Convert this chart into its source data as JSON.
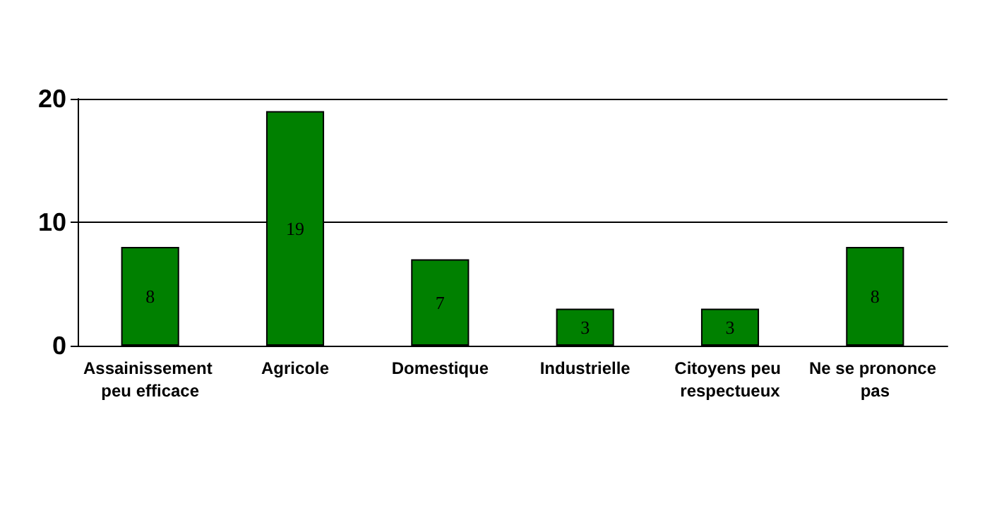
{
  "chart_data": {
    "type": "bar",
    "categories": [
      "Assainissement peu efficace",
      "Agricole",
      "Domestique",
      "Industrielle",
      "Citoyens peu respectueux",
      "Ne se prononce pas"
    ],
    "values": [
      8,
      19,
      7,
      3,
      3,
      8
    ],
    "color": "#008000",
    "ylim": [
      0,
      20
    ],
    "yticks": [
      0,
      10,
      20
    ],
    "grid": "y",
    "data_labels": true
  }
}
